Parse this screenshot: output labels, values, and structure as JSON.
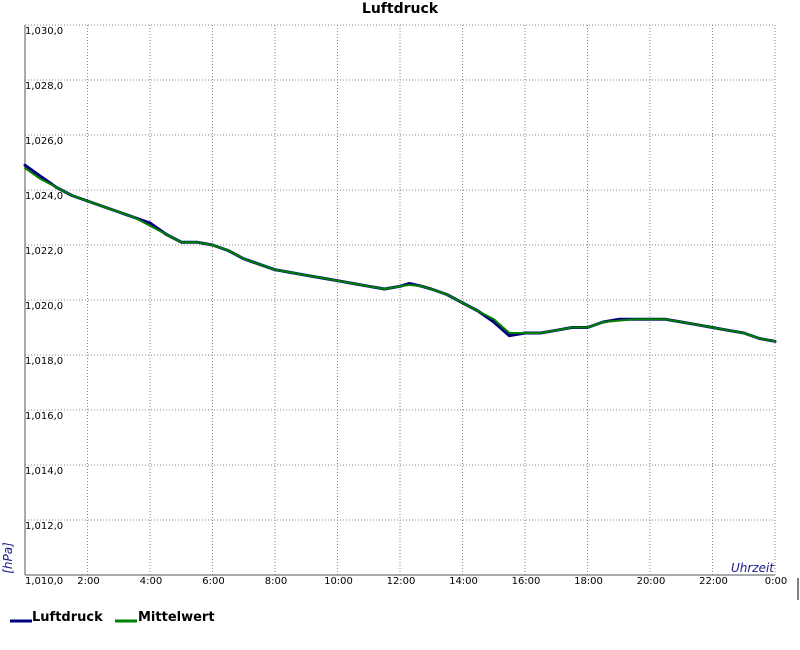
{
  "chart_data": {
    "type": "line",
    "title": "Luftdruck",
    "ylabel": "[hPa]",
    "xlabel": "Uhrzeit",
    "xlim": [
      0,
      24
    ],
    "ylim": [
      1010,
      1030
    ],
    "y_ticks": [
      "1,010,0",
      "1,012,0",
      "1,014,0",
      "1,016,0",
      "1,018,0",
      "1,020,0",
      "1,022,0",
      "1,024,0",
      "1,026,0",
      "1,028,0",
      "1,030,0"
    ],
    "x_ticks": [
      "2:00",
      "4:00",
      "6:00",
      "8:00",
      "10:00",
      "12:00",
      "14:00",
      "16:00",
      "18:00",
      "20:00",
      "22:00",
      "0:00"
    ],
    "grid": true,
    "legend_position": "bottom-left",
    "series": [
      {
        "name": "Luftdruck",
        "color": "#000080",
        "x": [
          0,
          0.5,
          1.0,
          1.5,
          2.0,
          2.5,
          3.0,
          3.5,
          4.0,
          4.5,
          5.0,
          5.5,
          6.0,
          6.5,
          7.0,
          7.5,
          8.0,
          8.5,
          9.0,
          9.5,
          10.0,
          10.5,
          11.0,
          11.5,
          12.0,
          12.3,
          12.7,
          13.0,
          13.5,
          14.0,
          14.5,
          15.0,
          15.3,
          15.5,
          16.0,
          16.5,
          17.0,
          17.5,
          18.0,
          18.5,
          19.0,
          19.5,
          20.0,
          20.5,
          21.0,
          21.5,
          22.0,
          22.5,
          23.0,
          23.5,
          24.0
        ],
        "values": [
          1024.9,
          1024.5,
          1024.1,
          1023.8,
          1023.6,
          1023.4,
          1023.2,
          1023.0,
          1022.8,
          1022.4,
          1022.1,
          1022.1,
          1022.0,
          1021.8,
          1021.5,
          1021.3,
          1021.1,
          1021.0,
          1020.9,
          1020.8,
          1020.7,
          1020.6,
          1020.5,
          1020.4,
          1020.5,
          1020.6,
          1020.5,
          1020.4,
          1020.2,
          1019.9,
          1019.6,
          1019.2,
          1018.9,
          1018.7,
          1018.8,
          1018.8,
          1018.9,
          1019.0,
          1019.0,
          1019.2,
          1019.3,
          1019.3,
          1019.3,
          1019.3,
          1019.2,
          1019.1,
          1019.0,
          1018.9,
          1018.8,
          1018.6,
          1018.5
        ]
      },
      {
        "name": "Mittelwert",
        "color": "#008000",
        "x": [
          0,
          0.5,
          1.0,
          1.5,
          2.0,
          2.5,
          3.0,
          3.5,
          4.0,
          4.5,
          5.0,
          5.5,
          6.0,
          6.5,
          7.0,
          7.5,
          8.0,
          8.5,
          9.0,
          9.5,
          10.0,
          10.5,
          11.0,
          11.5,
          12.0,
          12.3,
          12.7,
          13.0,
          13.5,
          14.0,
          14.5,
          15.0,
          15.3,
          15.5,
          16.0,
          16.5,
          17.0,
          17.5,
          18.0,
          18.5,
          19.0,
          19.5,
          20.0,
          20.5,
          21.0,
          21.5,
          22.0,
          22.5,
          23.0,
          23.5,
          24.0
        ],
        "values": [
          1024.8,
          1024.4,
          1024.1,
          1023.8,
          1023.6,
          1023.4,
          1023.2,
          1023.0,
          1022.7,
          1022.4,
          1022.1,
          1022.1,
          1022.0,
          1021.8,
          1021.5,
          1021.3,
          1021.1,
          1021.0,
          1020.9,
          1020.8,
          1020.7,
          1020.6,
          1020.5,
          1020.4,
          1020.5,
          1020.55,
          1020.5,
          1020.4,
          1020.2,
          1019.9,
          1019.6,
          1019.3,
          1019.0,
          1018.8,
          1018.8,
          1018.8,
          1018.9,
          1019.0,
          1019.0,
          1019.2,
          1019.25,
          1019.3,
          1019.3,
          1019.3,
          1019.2,
          1019.1,
          1019.0,
          1018.9,
          1018.8,
          1018.6,
          1018.5
        ]
      }
    ]
  }
}
